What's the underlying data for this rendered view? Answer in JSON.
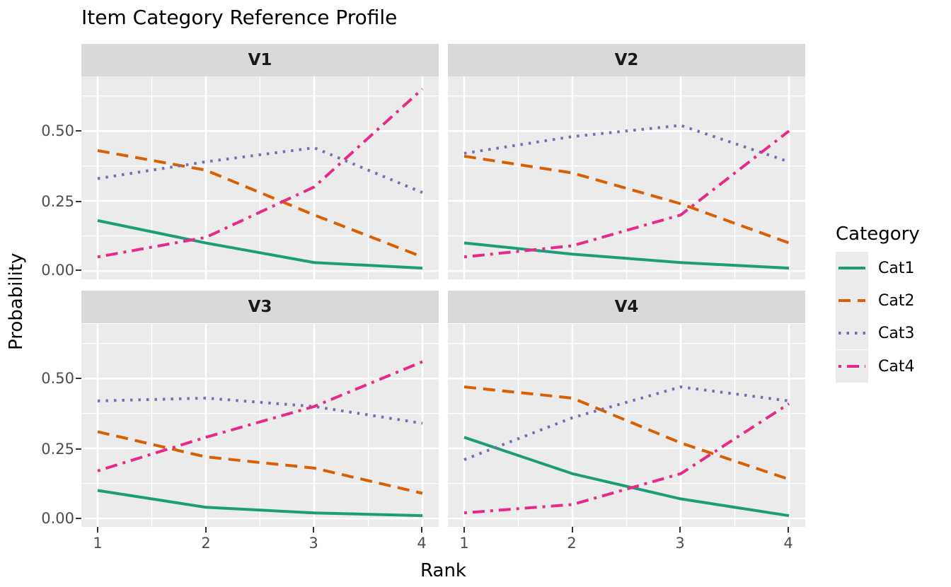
{
  "legend": {
    "title": "Category"
  },
  "colors": {
    "background": "#FFFFFF",
    "panel_bg": "#EBEBEB",
    "strip_bg": "#D9D9D9",
    "grid": "#FFFFFF",
    "axis_text": "#4D4D4D",
    "tick_mark": "#333333",
    "title_text": "#000000"
  },
  "chart_data": {
    "type": "line",
    "title": "Item Category Reference Profile",
    "xlabel": "Rank",
    "ylabel": "Probability",
    "x": [
      1,
      2,
      3,
      4
    ],
    "x_tick_labels": [
      "1",
      "2",
      "3",
      "4"
    ],
    "y_tick_labels": [
      "0.00",
      "0.25",
      "0.50"
    ],
    "x_range": [
      0.85,
      4.15
    ],
    "y_range": [
      -0.03,
      0.695
    ],
    "x_major": [
      1,
      2,
      3,
      4
    ],
    "x_minor": [
      1.5,
      2.5,
      3.5
    ],
    "y_major": [
      0,
      0.25,
      0.5
    ],
    "y_minor": [
      0.125,
      0.375,
      0.625
    ],
    "grid": true,
    "legend_position": "right",
    "categories": [
      {
        "name": "Cat1",
        "color": "#1B9E77",
        "linetype": "solid"
      },
      {
        "name": "Cat2",
        "color": "#D95F02",
        "linetype": "dashed"
      },
      {
        "name": "Cat3",
        "color": "#7570B3",
        "linetype": "dotted"
      },
      {
        "name": "Cat4",
        "color": "#E7298A",
        "linetype": "dotdash"
      }
    ],
    "facets": [
      {
        "name": "V1",
        "series": [
          {
            "name": "Cat1",
            "values": [
              0.18,
              0.1,
              0.03,
              0.01
            ]
          },
          {
            "name": "Cat2",
            "values": [
              0.43,
              0.36,
              0.2,
              0.05
            ]
          },
          {
            "name": "Cat3",
            "values": [
              0.33,
              0.39,
              0.44,
              0.28
            ]
          },
          {
            "name": "Cat4",
            "values": [
              0.05,
              0.12,
              0.3,
              0.65
            ]
          }
        ]
      },
      {
        "name": "V2",
        "series": [
          {
            "name": "Cat1",
            "values": [
              0.1,
              0.06,
              0.03,
              0.01
            ]
          },
          {
            "name": "Cat2",
            "values": [
              0.41,
              0.35,
              0.24,
              0.1
            ]
          },
          {
            "name": "Cat3",
            "values": [
              0.42,
              0.48,
              0.52,
              0.39
            ]
          },
          {
            "name": "Cat4",
            "values": [
              0.05,
              0.09,
              0.2,
              0.5
            ]
          }
        ]
      },
      {
        "name": "V3",
        "series": [
          {
            "name": "Cat1",
            "values": [
              0.1,
              0.04,
              0.02,
              0.01
            ]
          },
          {
            "name": "Cat2",
            "values": [
              0.31,
              0.22,
              0.18,
              0.09
            ]
          },
          {
            "name": "Cat3",
            "values": [
              0.42,
              0.43,
              0.4,
              0.34
            ]
          },
          {
            "name": "Cat4",
            "values": [
              0.17,
              0.29,
              0.4,
              0.56
            ]
          }
        ]
      },
      {
        "name": "V4",
        "series": [
          {
            "name": "Cat1",
            "values": [
              0.29,
              0.16,
              0.07,
              0.01
            ]
          },
          {
            "name": "Cat2",
            "values": [
              0.47,
              0.43,
              0.27,
              0.14
            ]
          },
          {
            "name": "Cat3",
            "values": [
              0.21,
              0.36,
              0.47,
              0.42
            ]
          },
          {
            "name": "Cat4",
            "values": [
              0.02,
              0.05,
              0.16,
              0.41
            ]
          }
        ]
      }
    ]
  }
}
